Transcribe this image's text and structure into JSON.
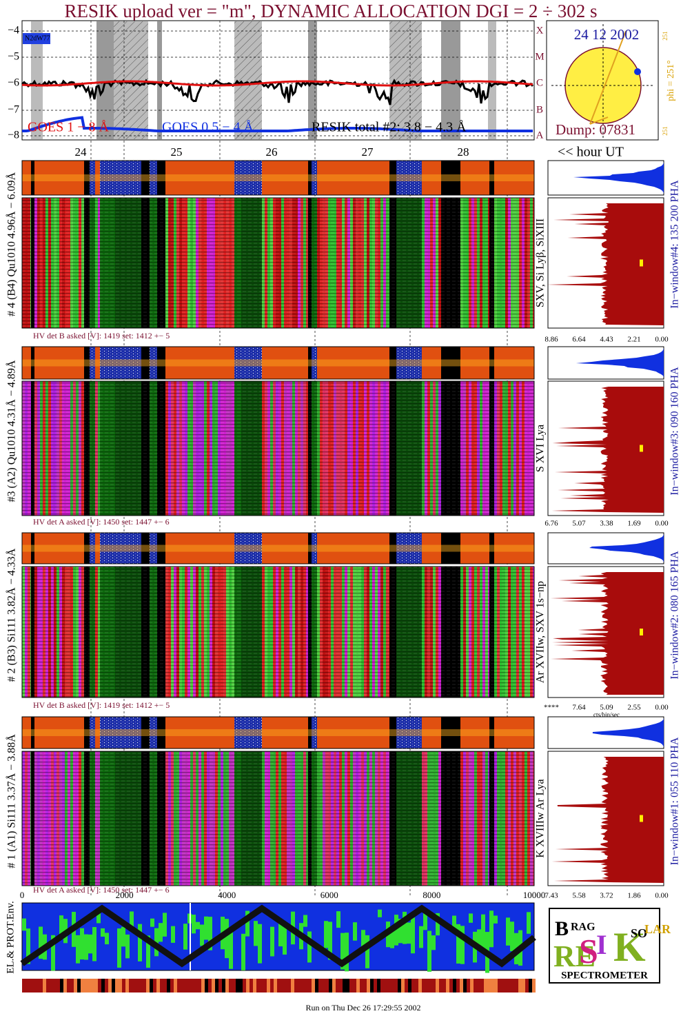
{
  "header": {
    "title": "RESIK upload ver = \"m\", DYNAMIC ALLOCATION  DGI =   2 ÷ 302 s"
  },
  "goes_panel": {
    "yticks": [
      "−4",
      "−5",
      "−6",
      "−7",
      "−8"
    ],
    "classes": [
      "X",
      "M",
      "C",
      "B",
      "A"
    ],
    "legend_box": "N2dW77",
    "legend": [
      "GOES 1 − 8 Å",
      "GOES 0.5 − 4 Å",
      "RESIK total #2: 3.8 − 4.3 Å"
    ]
  },
  "sun_panel": {
    "date": "24 12 2002",
    "dump": "Dump: 07831",
    "phi": "phi = 251°",
    "phi_small_top": "251",
    "phi_small_bottom": "251"
  },
  "days": [
    "24",
    "25",
    "26",
    "27",
    "28"
  ],
  "hour_label": "<< hour UT",
  "panels": [
    {
      "label": "# 4 (B4) Qu1010 4.96Å − 6.09Å",
      "hv": "HV det B asked [V]:  1419  set:  1412  +−   5",
      "line_label": "SXV, Si Lyβ, SiXIII",
      "window": "In−window#4:  135 200 PHA",
      "hist_ticks": [
        "8.86",
        "6.64",
        "4.43",
        "2.21",
        "0.00"
      ]
    },
    {
      "label": "#3 (A2) Qu1010  4.31Å − 4.89Å",
      "hv": "HV det A asked [V]:  1450  set:  1447  +−   6",
      "line_label": "S XVI Lya",
      "window": "In−window#3:  090 160 PHA",
      "hist_ticks": [
        "6.76",
        "5.07",
        "3.38",
        "1.69",
        "0.00"
      ]
    },
    {
      "label": "# 2 (B3) Si111  3.82Å − 4.33Å",
      "hv": "HV det B asked [V]:  1419  set:  1412  +−   5",
      "line_label": "Ar XVIIw,  SXV 1s−np",
      "window": "In−window#2:  080 165 PHA",
      "hist_ticks": [
        "****",
        "7.64",
        "5.09",
        "2.55",
        "0.00"
      ],
      "hist_unit": "cts/bin/sec"
    },
    {
      "label": "# 1 (A1) Si111  3.37Å −  3.88Å",
      "hv": "HV det A asked [V]:  1450  set:  1447  +−   6",
      "line_label": "K XVIIIw  Ar Lya",
      "window": "In−window#1:  055 110 PHA",
      "hist_ticks": [
        "7.43",
        "5.58",
        "3.72",
        "1.86",
        "0.00"
      ]
    }
  ],
  "bin_axis": [
    "0",
    "2000",
    "4000",
    "6000",
    "8000",
    "10000"
  ],
  "env_panel": {
    "label": "EL.& PROT.Env."
  },
  "logo": {
    "letters": [
      "B",
      "RAG",
      "RE",
      "S",
      "I",
      "K",
      "SO",
      "LAR"
    ],
    "name": "SPECTROMETER"
  },
  "footer": "Run on Thu Dec 26 17:29:55 2002"
}
